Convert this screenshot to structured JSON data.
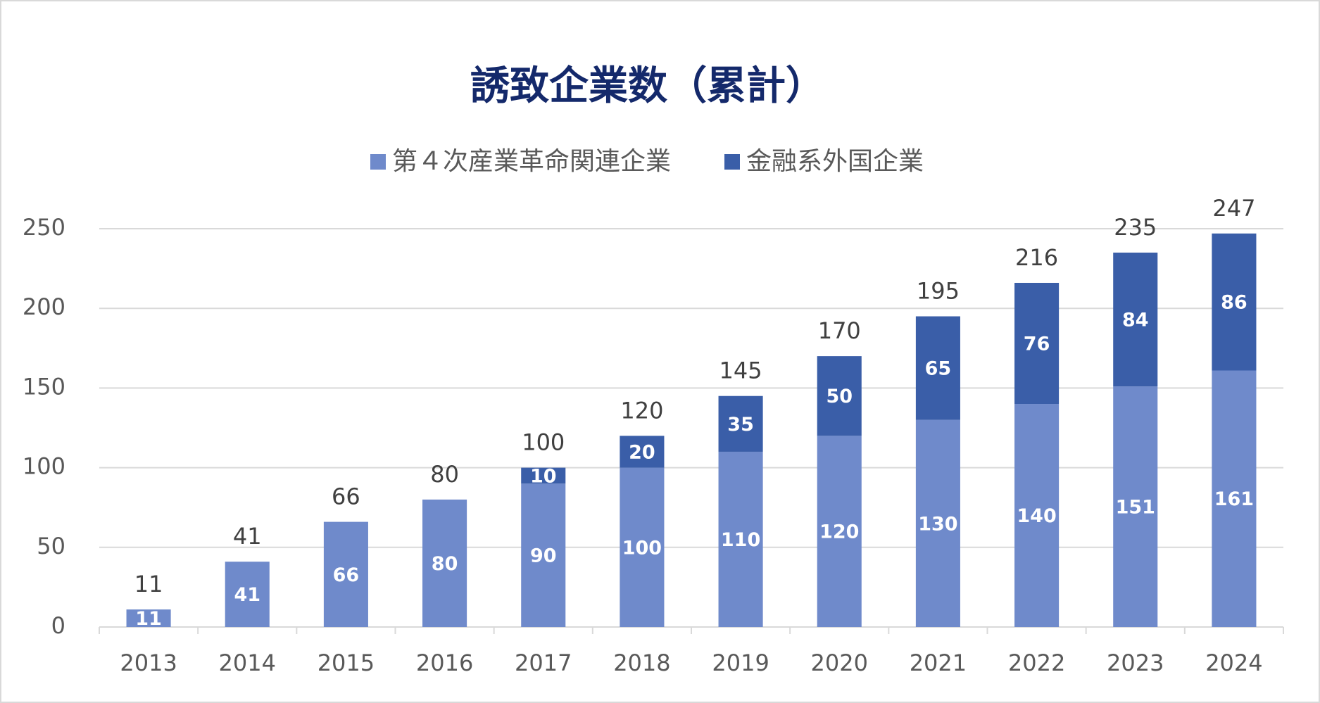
{
  "chart_data": {
    "type": "stacked-bar",
    "title": "誘致企業数（累計）",
    "categories": [
      "2013",
      "2014",
      "2015",
      "2016",
      "2017",
      "2018",
      "2019",
      "2020",
      "2021",
      "2022",
      "2023",
      "2024"
    ],
    "series": [
      {
        "name": "第４次産業革命関連企業",
        "color": "#6f8acb",
        "values": [
          11,
          41,
          66,
          80,
          90,
          100,
          110,
          120,
          130,
          140,
          151,
          161
        ]
      },
      {
        "name": "金融系外国企業",
        "color": "#3a5ea8",
        "values": [
          null,
          null,
          null,
          null,
          10,
          20,
          35,
          50,
          65,
          76,
          84,
          86
        ]
      }
    ],
    "totals": [
      11,
      41,
      66,
      80,
      100,
      120,
      145,
      170,
      195,
      216,
      235,
      247
    ],
    "ylim": [
      0,
      250
    ],
    "yticks": [
      0,
      50,
      100,
      150,
      200,
      250
    ],
    "grid": true,
    "legend": "top"
  }
}
